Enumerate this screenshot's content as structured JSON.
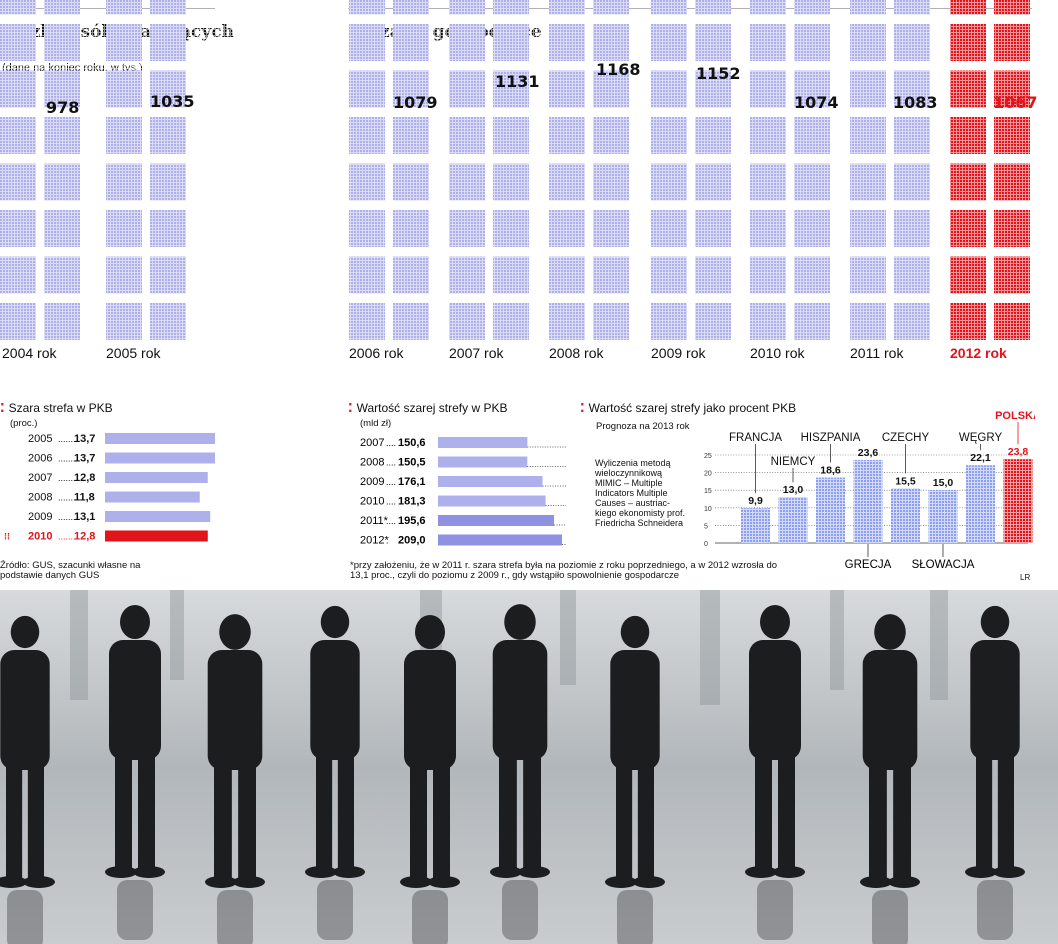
{
  "section1": {
    "title": "Liczba osób pracujących",
    "subtitle": "(dane na koniec roku, w tys.)",
    "years": [
      {
        "label": "2004 rok",
        "value": "978",
        "v": 978,
        "highlight": false
      },
      {
        "label": "2005 rok",
        "value": "1035",
        "v": 1035,
        "highlight": false
      }
    ]
  },
  "section2": {
    "title": "w szarej gospodarce",
    "years": [
      {
        "label": "2006 rok",
        "value": "1079",
        "v": 1079,
        "highlight": false
      },
      {
        "label": "2007 rok",
        "value": "1131",
        "v": 1131,
        "highlight": false
      },
      {
        "label": "2008 rok",
        "value": "1168",
        "v": 1168,
        "highlight": false
      },
      {
        "label": "2009 rok",
        "value": "1152",
        "v": 1152,
        "highlight": false
      },
      {
        "label": "2010 rok",
        "value": "1074",
        "v": 1074,
        "highlight": false
      },
      {
        "label": "2011 rok",
        "value": "1083",
        "v": 1083,
        "highlight": false
      },
      {
        "label": "2012 rok",
        "value": "1067",
        "v": 1067,
        "highlight": true
      }
    ]
  },
  "pkb": {
    "title": "Szara strefa w PKB",
    "unit": "(proc.)",
    "rows": [
      {
        "year": "2005",
        "dots": "........",
        "value": "13,7",
        "v": 13.7,
        "highlight": false
      },
      {
        "year": "2006",
        "dots": "........",
        "value": "13,7",
        "v": 13.7,
        "highlight": false
      },
      {
        "year": "2007",
        "dots": "........",
        "value": "12,8",
        "v": 12.8,
        "highlight": false
      },
      {
        "year": "2008",
        "dots": "........",
        "value": "11,8",
        "v": 11.8,
        "highlight": false
      },
      {
        "year": "2009",
        "dots": "........",
        "value": "13,1",
        "v": 13.1,
        "highlight": false
      },
      {
        "year": "2010",
        "dots": "........",
        "value": "12,8",
        "v": 12.8,
        "highlight": true
      }
    ],
    "source": "Źródło: GUS, szacunki własne na podstawie danych GUS"
  },
  "value": {
    "title": "Wartość szarej strefy w PKB",
    "unit": "(mld zł)",
    "rows": [
      {
        "year": "2007",
        "dots": "....",
        "value": "150,6",
        "v": 150.6,
        "forecast": false
      },
      {
        "year": "2008",
        "dots": "....",
        "value": "150,5",
        "v": 150.5,
        "forecast": false
      },
      {
        "year": "2009",
        "dots": "....",
        "value": "176,1",
        "v": 176.1,
        "forecast": false
      },
      {
        "year": "2010",
        "dots": "....",
        "value": "181,3",
        "v": 181.3,
        "forecast": false
      },
      {
        "year": "2011*",
        "dots": "....",
        "value": "195,6",
        "v": 195.6,
        "forecast": true
      },
      {
        "year": "2012*",
        "dots": ".",
        "value": "209,0",
        "v": 209.0,
        "forecast": true
      }
    ],
    "footnote": "*przy założeniu, że w 2011 r. szara strefa była na poziomie z roku poprzedniego, a w 2012 wzrosła do 13,1 proc., czyli do poziomu z 2009 r., gdy wstąpiło spowolnienie gospodarcze"
  },
  "percent": {
    "title": "Wartość szarej strefy jako procent PKB",
    "subtitle": "Prognoza na 2013 rok",
    "note": "Wyliczenia metodą wieloczynnikową MIMIC – Multiple Indicators Multiple Causes – austriac­kiego ekonomisty prof. Friedricha Schneidera",
    "axis_ticks": [
      "25",
      "20",
      "15",
      "10",
      "5",
      "0"
    ],
    "ylim": [
      0,
      25
    ],
    "countries": [
      {
        "name": "FRANCJA",
        "value": "9,9",
        "v": 9.9,
        "label_pos": "top",
        "highlight": false
      },
      {
        "name": "NIEMCY",
        "value": "13,0",
        "v": 13.0,
        "label_pos": "top",
        "highlight": false
      },
      {
        "name": "HISZPANIA",
        "value": "18,6",
        "v": 18.6,
        "label_pos": "top",
        "highlight": false
      },
      {
        "name": "GRECJA",
        "value": "23,6",
        "v": 23.6,
        "label_pos": "bottom",
        "highlight": false
      },
      {
        "name": "CZECHY",
        "value": "15,5",
        "v": 15.5,
        "label_pos": "top",
        "highlight": false
      },
      {
        "name": "SŁOWACJA",
        "value": "15,0",
        "v": 15.0,
        "label_pos": "bottom",
        "highlight": false
      },
      {
        "name": "WĘGRY",
        "value": "22,1",
        "v": 22.1,
        "label_pos": "top",
        "highlight": false
      },
      {
        "name": "POLSKA",
        "value": "23,8",
        "v": 23.8,
        "label_pos": "top",
        "highlight": true
      }
    ],
    "credit": "LR"
  },
  "colors": {
    "bar": "#aeb0ec",
    "bar_dark": "#8f91e2",
    "red": "#e1141b",
    "text": "#111111"
  },
  "chart_data": [
    {
      "type": "bar",
      "title": "Liczba osób pracujących w szarej gospodarce",
      "unit": "tys.",
      "categories": [
        "2004",
        "2005",
        "2006",
        "2007",
        "2008",
        "2009",
        "2010",
        "2011",
        "2012"
      ],
      "values": [
        978,
        1035,
        1079,
        1131,
        1168,
        1152,
        1074,
        1083,
        1067
      ]
    },
    {
      "type": "bar",
      "title": "Szara strefa w PKB",
      "unit": "proc.",
      "categories": [
        "2005",
        "2006",
        "2007",
        "2008",
        "2009",
        "2010"
      ],
      "values": [
        13.7,
        13.7,
        12.8,
        11.8,
        13.1,
        12.8
      ]
    },
    {
      "type": "bar",
      "title": "Wartość szarej strefy w PKB",
      "unit": "mld zł",
      "categories": [
        "2007",
        "2008",
        "2009",
        "2010",
        "2011*",
        "2012*"
      ],
      "values": [
        150.6,
        150.5,
        176.1,
        181.3,
        195.6,
        209.0
      ]
    },
    {
      "type": "bar",
      "title": "Wartość szarej strefy jako procent PKB",
      "subtitle": "Prognoza na 2013 rok",
      "categories": [
        "FRANCJA",
        "NIEMCY",
        "HISZPANIA",
        "GRECJA",
        "CZECHY",
        "SŁOWACJA",
        "WĘGRY",
        "POLSKA"
      ],
      "values": [
        9.9,
        13.0,
        18.6,
        23.6,
        15.5,
        15.0,
        22.1,
        23.8
      ],
      "ylim": [
        0,
        25
      ]
    }
  ]
}
